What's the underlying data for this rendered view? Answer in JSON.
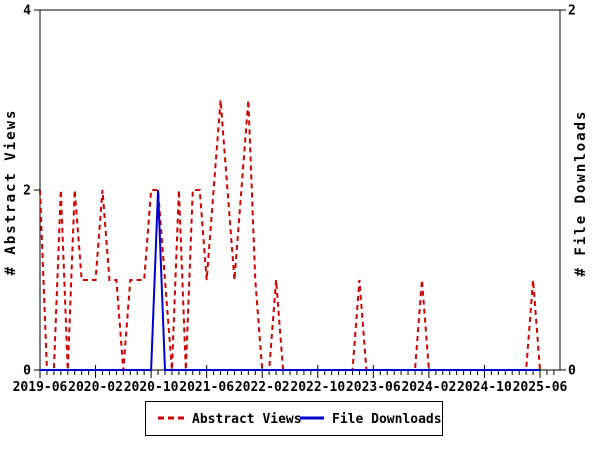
{
  "chart_data": {
    "type": "line",
    "title": "",
    "background": "#ffffff",
    "frame_color": "#000000",
    "grid": false,
    "legend_position": "bottom-center",
    "left_axis": {
      "label": "# Abstract Views",
      "ticks": [
        0,
        2,
        4
      ],
      "range": [
        0,
        4
      ]
    },
    "right_axis": {
      "label": "# File Downloads",
      "ticks": [
        0,
        2
      ],
      "range": [
        0,
        2
      ]
    },
    "x_axis": {
      "tick_labels": [
        "2019-06",
        "2020-02",
        "2020-10",
        "2021-06",
        "2022-02",
        "2022-10",
        "2023-06",
        "2024-02",
        "2024-10",
        "2025-06"
      ],
      "major_tick_every_months": 8,
      "minor_tick_every_months": 1
    },
    "months": [
      "2019-06",
      "2019-07",
      "2019-08",
      "2019-09",
      "2019-10",
      "2019-11",
      "2019-12",
      "2020-01",
      "2020-02",
      "2020-03",
      "2020-04",
      "2020-05",
      "2020-06",
      "2020-07",
      "2020-08",
      "2020-09",
      "2020-10",
      "2020-11",
      "2020-12",
      "2021-01",
      "2021-02",
      "2021-03",
      "2021-04",
      "2021-05",
      "2021-06",
      "2021-07",
      "2021-08",
      "2021-09",
      "2021-10",
      "2021-11",
      "2021-12",
      "2022-01",
      "2022-02",
      "2022-03",
      "2022-04",
      "2022-05",
      "2022-06",
      "2022-07",
      "2022-08",
      "2022-09",
      "2022-10",
      "2022-11",
      "2022-12",
      "2023-01",
      "2023-02",
      "2023-03",
      "2023-04",
      "2023-05",
      "2023-06",
      "2023-07",
      "2023-08",
      "2023-09",
      "2023-10",
      "2023-11",
      "2023-12",
      "2024-01",
      "2024-02",
      "2024-03",
      "2024-04",
      "2024-05",
      "2024-06",
      "2024-07",
      "2024-08",
      "2024-09",
      "2024-10",
      "2024-11",
      "2024-12",
      "2025-01",
      "2025-02",
      "2025-03",
      "2025-04",
      "2025-05",
      "2025-06"
    ],
    "series": [
      {
        "name": "Abstract Views",
        "color": "#cc0000",
        "style": "dashed",
        "axis": "left",
        "values": [
          2,
          0,
          0,
          2,
          0,
          2,
          1,
          1,
          1,
          2,
          1,
          1,
          0,
          1,
          1,
          1,
          2,
          2,
          1,
          0,
          2,
          0,
          2,
          2,
          1,
          2,
          3,
          2,
          1,
          2,
          3,
          1,
          0,
          0,
          1,
          0,
          0,
          0,
          0,
          0,
          0,
          0,
          0,
          0,
          0,
          0,
          1,
          0,
          0,
          0,
          0,
          0,
          0,
          0,
          0,
          1,
          0,
          0,
          0,
          0,
          0,
          0,
          0,
          0,
          0,
          0,
          0,
          0,
          0,
          0,
          0,
          1,
          0
        ]
      },
      {
        "name": "File Downloads",
        "color": "#0000cc",
        "style": "solid",
        "axis": "right",
        "values": [
          0,
          0,
          0,
          0,
          0,
          0,
          0,
          0,
          0,
          0,
          0,
          0,
          0,
          0,
          0,
          0,
          0,
          1,
          0,
          0,
          0,
          0,
          0,
          0,
          0,
          0,
          0,
          0,
          0,
          0,
          0,
          0,
          0,
          0,
          0,
          0,
          0,
          0,
          0,
          0,
          0,
          0,
          0,
          0,
          0,
          0,
          0,
          0,
          0,
          0,
          0,
          0,
          0,
          0,
          0,
          0,
          0,
          0,
          0,
          0,
          0,
          0,
          0,
          0,
          0,
          0,
          0,
          0,
          0,
          0,
          0,
          0,
          0
        ]
      }
    ]
  }
}
